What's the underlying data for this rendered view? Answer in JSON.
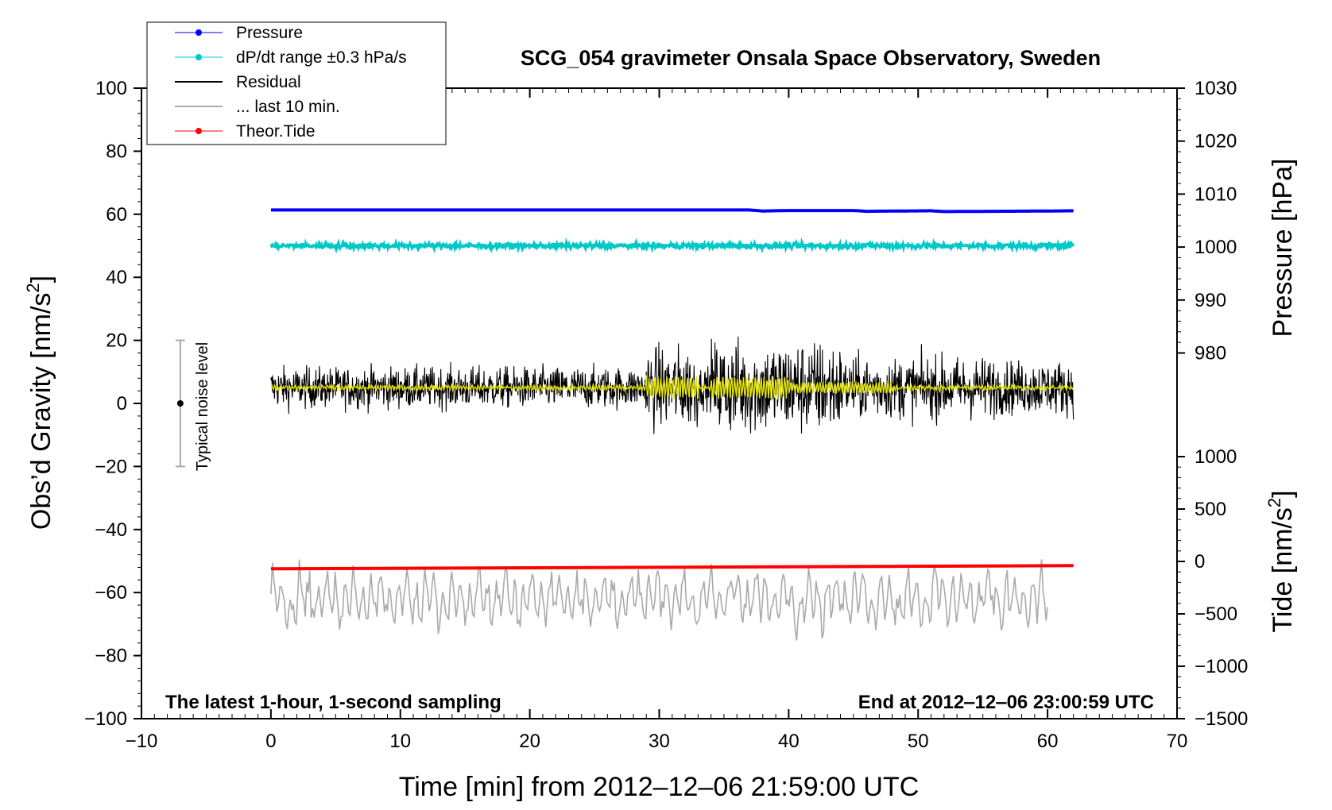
{
  "chart_data": {
    "type": "line",
    "title": "SCG_054 gravimeter Onsala Space Observatory, Sweden",
    "xlabel": "Time [min] from 2012‒12‒06 21:59:00 UTC",
    "ylabel_left_main": "Obs’d Gravity [nm/s",
    "ylabel_left_sup": "2",
    "ylabel_left_end": "]",
    "ylabel_right_top": "Pressure [hPa]",
    "ylabel_right_bottom_main": "Tide [nm/s",
    "ylabel_right_bottom_sup": "2",
    "ylabel_right_bottom_end": "]",
    "xlim": [
      -10,
      70
    ],
    "ylim_left": [
      -100,
      100
    ],
    "ylim_pressure": [
      980,
      1030
    ],
    "ylim_tide": [
      -1500,
      1000
    ],
    "x_ticks": [
      "−10",
      "0",
      "10",
      "20",
      "30",
      "40",
      "50",
      "60",
      "70"
    ],
    "x_tick_values": [
      -10,
      0,
      10,
      20,
      30,
      40,
      50,
      60,
      70
    ],
    "y_left_ticks": [
      "100",
      "80",
      "60",
      "40",
      "20",
      "0",
      "−20",
      "−40",
      "−60",
      "−80",
      "−100"
    ],
    "y_left_tick_values": [
      100,
      80,
      60,
      40,
      20,
      0,
      -20,
      -40,
      -60,
      -80,
      -100
    ],
    "pressure_ticks": [
      "1030",
      "1020",
      "1010",
      "1000",
      "990",
      "980"
    ],
    "pressure_tick_values": [
      1030,
      1020,
      1010,
      1000,
      990,
      980
    ],
    "tide_ticks": [
      "1000",
      "500",
      "0",
      "−500",
      "−1000",
      "−1500"
    ],
    "tide_tick_values": [
      1000,
      500,
      0,
      -500,
      -1000,
      -1500
    ],
    "note_left": "The latest 1‑hour, 1‑second sampling",
    "note_right": "End at 2012‒12‒06 23:00:59 UTC",
    "noise_label": "Typical noise level",
    "noise_bar": {
      "x": -7,
      "center": 0,
      "low": -20,
      "high": 20
    },
    "legend_position": "top-left",
    "legend": [
      {
        "label": "Pressure",
        "color": "#0000ff",
        "marker": true
      },
      {
        "label": "dP/dt range ±0.3 hPa/s",
        "color": "#00c8c8",
        "marker": true
      },
      {
        "label": "Residual",
        "color": "#000000",
        "marker": false
      },
      {
        "label": "... last 10 min.",
        "color": "#aaaaaa",
        "marker": false
      },
      {
        "label": "Theor.Tide",
        "color": "#ff0000",
        "marker": true
      }
    ],
    "series": [
      {
        "name": "Pressure",
        "color": "#0000ff",
        "axis": "pressure",
        "x": [
          0,
          10,
          20,
          30,
          37,
          38,
          40,
          45,
          46,
          51,
          52,
          60,
          62
        ],
        "y": [
          1007,
          1007,
          1007,
          1007,
          1007,
          1006.8,
          1006.9,
          1006.9,
          1006.75,
          1006.85,
          1006.7,
          1006.8,
          1006.85
        ]
      },
      {
        "name": "dP/dt range ±0.3 hPa/s",
        "color": "#00c8c8",
        "axis": "left",
        "x": [
          0,
          62
        ],
        "y": [
          50,
          50
        ]
      },
      {
        "name": "Residual",
        "color": "#000000",
        "axis": "left",
        "x": [
          0,
          62
        ],
        "y": [
          5,
          5
        ]
      },
      {
        "name": "... last 10 min.",
        "color": "#aaaaaa",
        "axis": "tide",
        "x": [
          0,
          60
        ],
        "y": [
          -350,
          -350
        ]
      },
      {
        "name": "Theor.Tide",
        "color": "#ff0000",
        "axis": "tide",
        "x": [
          0,
          62
        ],
        "y": [
          -70,
          -40
        ]
      }
    ]
  }
}
